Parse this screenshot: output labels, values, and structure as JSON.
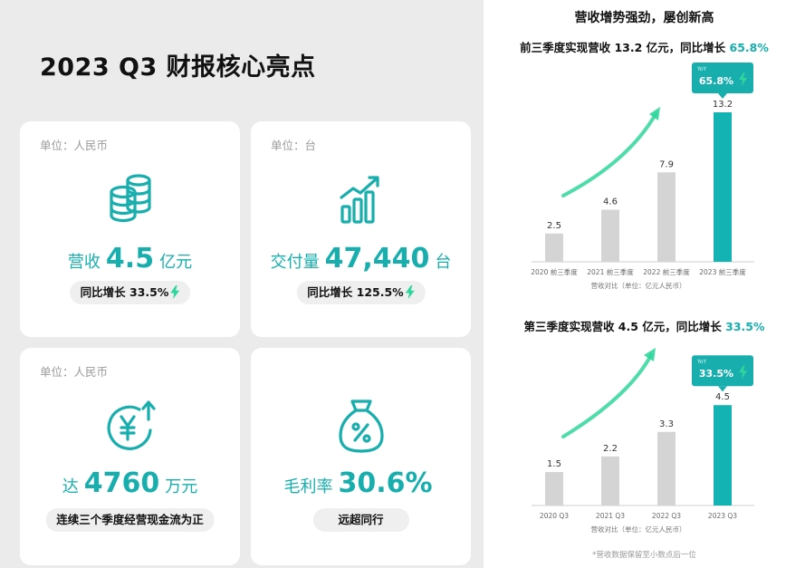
{
  "title": "2023 Q3 财报核心亮点",
  "cards": [
    {
      "unit": "单位：人民币",
      "label": "营收",
      "value": "4.5",
      "suffix": "亿元",
      "pill": "同比增长 33.5%"
    },
    {
      "unit": "单位：台",
      "label": "交付量",
      "value": "47,440",
      "suffix": "台",
      "pill": "同比增长 125.5%"
    },
    {
      "unit": "单位：人民币",
      "label": "达",
      "value": "4760",
      "suffix": "万元",
      "pill": "连续三个季度经营现金流为正"
    },
    {
      "unit": "",
      "label": "毛利率",
      "value": "30.6%",
      "suffix": "",
      "pill": "远超同行"
    }
  ],
  "right": {
    "heading": "营收增势强劲，屡创新高",
    "chart1_subtitle": {
      "prefix": "前三季度实现营收 13.2 亿元，同比增长 ",
      "highlight": "65.8%"
    },
    "chart2_subtitle": {
      "prefix": "第三季度实现营收 4.5 亿元，同比增长 ",
      "highlight": "33.5%"
    },
    "footnote": "*营收数据保留至小数点后一位"
  },
  "colors": {
    "accent": "#19aeae",
    "bar_gray": "#d4d4d4",
    "highlight_bar": "#14b3b3",
    "arrow": "#2fd69b"
  },
  "chart_data": [
    {
      "type": "bar",
      "categories": [
        "2020 前三季度",
        "2021 前三季度",
        "2022 前三季度",
        "2023 前三季度"
      ],
      "values": [
        2.5,
        4.6,
        7.9,
        13.2
      ],
      "xlabel": "营收对比（单位：亿元人民币）",
      "ylim": [
        0,
        14
      ],
      "badge": {
        "tag": "YoY",
        "text": "65.8%"
      }
    },
    {
      "type": "bar",
      "categories": [
        "2020 Q3",
        "2021 Q3",
        "2022 Q3",
        "2023 Q3"
      ],
      "values": [
        1.5,
        2.2,
        3.3,
        4.5
      ],
      "xlabel": "营收对比（单位：亿元人民币）",
      "ylim": [
        0,
        5.2
      ],
      "badge": {
        "tag": "YoY",
        "text": "33.5%"
      }
    }
  ]
}
